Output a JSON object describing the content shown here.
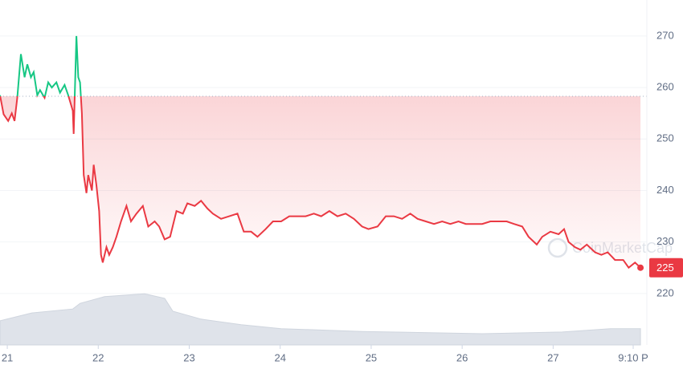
{
  "chart_data": {
    "type": "line",
    "x": [
      20.92,
      20.96,
      21.01,
      21.05,
      21.08,
      21.11,
      21.15,
      21.19,
      21.22,
      21.26,
      21.29,
      21.33,
      21.36,
      21.41,
      21.45,
      21.49,
      21.54,
      21.58,
      21.63,
      21.67,
      21.72,
      21.73,
      21.76,
      21.78,
      21.8,
      21.82,
      21.84,
      21.87,
      21.89,
      21.93,
      21.95,
      21.98,
      22.01,
      22.03,
      22.05,
      22.09,
      22.12,
      22.16,
      22.2,
      22.25,
      22.31,
      22.36,
      22.42,
      22.49,
      22.55,
      22.62,
      22.67,
      22.73,
      22.79,
      22.86,
      22.93,
      22.98,
      23.06,
      23.13,
      23.2,
      23.26,
      23.35,
      23.44,
      23.53,
      23.6,
      23.68,
      23.75,
      23.84,
      23.92,
      24.01,
      24.1,
      24.19,
      24.28,
      24.37,
      24.45,
      24.54,
      24.63,
      24.72,
      24.81,
      24.9,
      24.97,
      25.07,
      25.16,
      25.25,
      25.34,
      25.43,
      25.51,
      25.6,
      25.69,
      25.78,
      25.87,
      25.96,
      26.04,
      26.13,
      26.22,
      26.31,
      26.4,
      26.49,
      26.57,
      26.66,
      26.73,
      26.82,
      26.88,
      26.97,
      27.06,
      27.12,
      27.17,
      27.24,
      27.3,
      27.37,
      27.46,
      27.53,
      27.6,
      27.68,
      27.77,
      27.83,
      27.9,
      27.96
    ],
    "series": [
      {
        "values": [
          258.5,
          254.8,
          253.5,
          255,
          253.5,
          258,
          266.5,
          262,
          264.5,
          262,
          263,
          258.5,
          259.5,
          258,
          261,
          260,
          261,
          259,
          260.5,
          258.5,
          255.5,
          251,
          270,
          262,
          261,
          255,
          243,
          239.5,
          243,
          240,
          245,
          241,
          236,
          227.5,
          226,
          229,
          227.5,
          229,
          231,
          234,
          237,
          234,
          235.5,
          237,
          233,
          234,
          233,
          230.5,
          231,
          236,
          235.5,
          237.5,
          237,
          238,
          236.5,
          235.5,
          234.5,
          235,
          235.5,
          232,
          232,
          231,
          232.5,
          234,
          234,
          235,
          235,
          235,
          235.5,
          235,
          236,
          235,
          235.5,
          234.5,
          233,
          232.5,
          233,
          235,
          235,
          234.5,
          235.5,
          234.5,
          234,
          233.5,
          234,
          233.5,
          234,
          233.5,
          233.5,
          233.5,
          234,
          234,
          234,
          233.5,
          233,
          231,
          229.5,
          231,
          232,
          231.5,
          232.5,
          230,
          229,
          228.5,
          229.5,
          228,
          227.5,
          228,
          226.5,
          226.5,
          225,
          226,
          225
        ],
        "color_up": "#16c784",
        "color_down": "#ea3943"
      }
    ],
    "baseline": 258.3,
    "last_label": "225",
    "volume": {
      "x": [
        20.92,
        21.27,
        21.72,
        21.8,
        22.07,
        22.51,
        22.73,
        22.82,
        23.13,
        23.57,
        24.01,
        24.9,
        26.22,
        27.1,
        27.63,
        27.96
      ],
      "values": [
        43,
        57,
        64,
        74,
        86,
        91,
        83,
        60,
        46,
        36,
        29,
        24,
        20,
        23,
        29,
        29
      ],
      "ylim": [
        0,
        100
      ],
      "color": "#dfe3ea"
    },
    "xlim": [
      20.92,
      28.03
    ],
    "ylim": [
      210,
      277
    ],
    "yticks": [
      220,
      230,
      240,
      250,
      260,
      270
    ],
    "xticks": [
      21,
      22,
      23,
      24,
      25,
      26,
      27,
      {
        "value": 27.88,
        "label": "9:10 P"
      }
    ],
    "grid": true,
    "watermark": "CoinMarketCap"
  }
}
